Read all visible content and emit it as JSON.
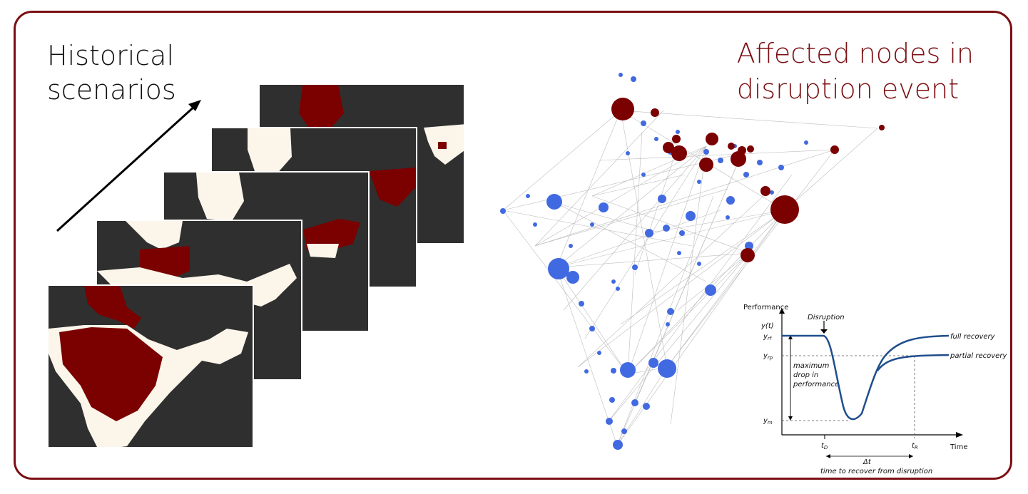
{
  "titles": {
    "left_line1": "Historical",
    "left_line2": "scenarios",
    "right_line1": "Affected nodes in",
    "right_line2": "disruption event"
  },
  "colors": {
    "frame": "#7b0f12",
    "affected": "#7b0000",
    "node": "#4169e1",
    "land": "#fbf5ea",
    "sea": "#2f2f2f",
    "curve": "#1f4e8c"
  },
  "maps": {
    "count": 5,
    "description_icon": "india-map-thumbnail"
  },
  "resilience_chart": {
    "y_axis_label": "Performance",
    "y_symbol": "y(t)",
    "yf_label": "y",
    "yf_sub": "rf",
    "yp_label": "y",
    "yp_sub": "rp",
    "ym_label": "y",
    "ym_sub": "m",
    "disruption_label": "Disruption",
    "drop_label_1": "maximum",
    "drop_label_2": "drop in",
    "drop_label_3": "performance",
    "full_recovery": "full recovery",
    "partial_recovery": "partial recovery",
    "td_label": "t",
    "td_sub": "D",
    "tr_label": "t",
    "tr_sub": "R",
    "time_label": "Time",
    "delta_label": "Δt",
    "delta_caption": "time to recover from disruption"
  }
}
